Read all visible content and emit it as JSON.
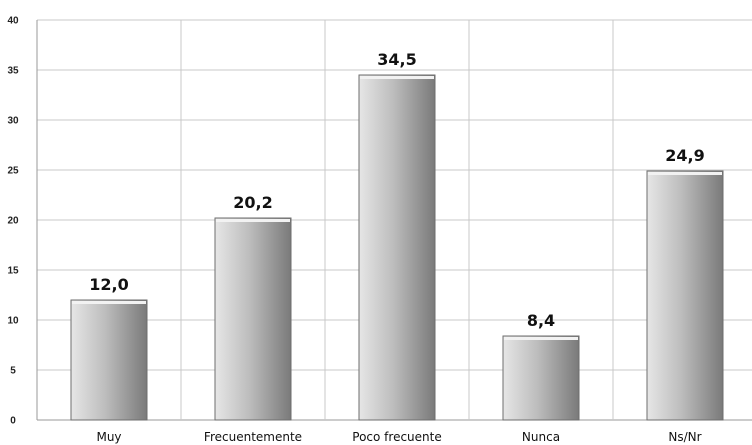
{
  "chart_data": {
    "type": "bar",
    "title": "",
    "xlabel": "",
    "ylabel": "",
    "categories": [
      "Muy",
      "Frecuentemente",
      "Poco frecuente",
      "Nunca",
      "Ns/Nr"
    ],
    "values": [
      12.0,
      20.2,
      34.5,
      8.4,
      24.9
    ],
    "data_labels": [
      "12,0",
      "20,2",
      "34,5",
      "8,4",
      "24,9"
    ],
    "ylim": [
      0,
      40
    ],
    "yticks": [
      0,
      5,
      10,
      15,
      20,
      25,
      30,
      35,
      40
    ],
    "grid": true,
    "legend": "none",
    "colors": {
      "bar_light": "#e6e6e6",
      "bar_dark": "#7a7a7a",
      "bar_top": "#f2f2f2",
      "grid": "#c8c8c8",
      "axis": "#9a9a9a"
    }
  }
}
